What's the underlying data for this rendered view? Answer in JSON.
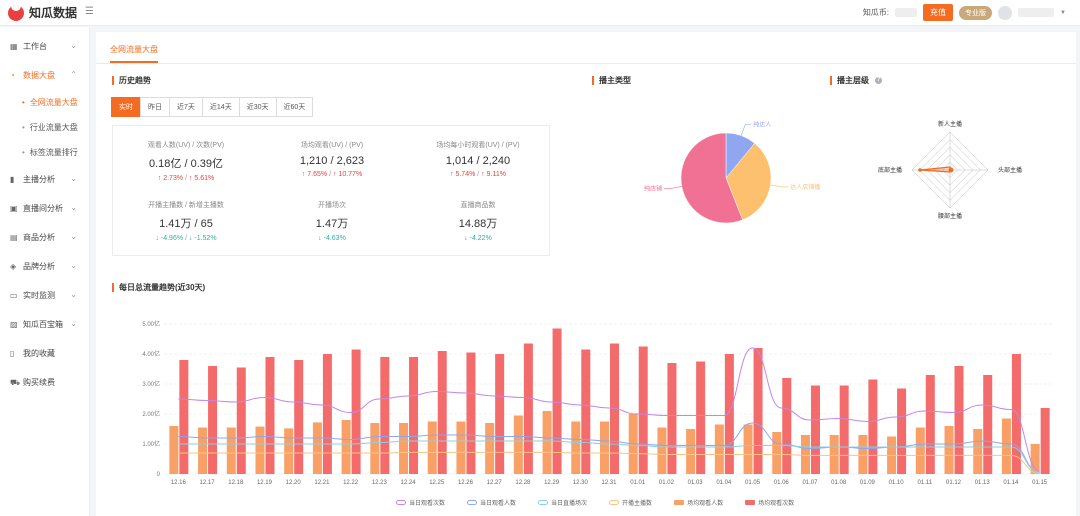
{
  "app": {
    "name": "知瓜数据"
  },
  "topbar": {
    "coin_label": "知瓜币:",
    "recharge": "充值",
    "pro_badge": "专业版"
  },
  "sidebar": {
    "items": [
      {
        "label": "工作台",
        "icon": "grid-icon",
        "has_chevron": true
      },
      {
        "label": "数据大盘",
        "icon": "pie-icon",
        "has_chevron": true,
        "active": true
      },
      {
        "label": "主播分析",
        "icon": "bar-icon",
        "has_chevron": true
      },
      {
        "label": "直播间分析",
        "icon": "tv-icon",
        "has_chevron": true
      },
      {
        "label": "商品分析",
        "icon": "box-icon",
        "has_chevron": true
      },
      {
        "label": "品牌分析",
        "icon": "brand-icon",
        "has_chevron": true
      },
      {
        "label": "实时监测",
        "icon": "monitor-icon",
        "has_chevron": true
      },
      {
        "label": "知瓜百宝箱",
        "icon": "toolbox-icon",
        "has_chevron": true
      },
      {
        "label": "我的收藏",
        "icon": "bookmark-icon",
        "has_chevron": false
      },
      {
        "label": "购买续费",
        "icon": "cart-icon",
        "has_chevron": false
      }
    ],
    "sub_items": [
      {
        "label": "全网流量大盘",
        "active": true
      },
      {
        "label": "行业流量大盘",
        "active": false
      },
      {
        "label": "标签流量排行",
        "active": false
      }
    ]
  },
  "main": {
    "tab": "全网流量大盘",
    "history_title": "历史趋势",
    "anchor_type_title": "播主类型",
    "anchor_level_title": "播主层级",
    "periods": [
      "实时",
      "昨日",
      "近7天",
      "近14天",
      "近30天",
      "近60天"
    ],
    "stats": [
      {
        "label": "观看人数(UV) / 次数(PV)",
        "value": "0.18亿 / 0.39亿",
        "changes": [
          {
            "dir": "up",
            "text": "2.73%"
          },
          {
            "dir": "up",
            "text": "5.61%"
          }
        ]
      },
      {
        "label": "场均观看(UV) / (PV)",
        "value": "1,210 / 2,623",
        "changes": [
          {
            "dir": "up",
            "text": "7.65%"
          },
          {
            "dir": "up",
            "text": "10.77%"
          }
        ]
      },
      {
        "label": "场均每小时观看(UV) / (PV)",
        "value": "1,014 / 2,240",
        "changes": [
          {
            "dir": "up",
            "text": "5.74%"
          },
          {
            "dir": "up",
            "text": "9.11%"
          }
        ]
      },
      {
        "label": "开播主播数 / 新增主播数",
        "value": "1.41万 / 65",
        "changes": [
          {
            "dir": "down",
            "text": "-4.96%"
          },
          {
            "dir": "down",
            "text": "-1.52%"
          }
        ]
      },
      {
        "label": "开播场次",
        "value": "1.47万",
        "changes": [
          {
            "dir": "down",
            "text": "-4.63%"
          }
        ]
      },
      {
        "label": "直播商品数",
        "value": "14.88万",
        "changes": [
          {
            "dir": "down",
            "text": "-4.22%"
          }
        ]
      }
    ],
    "daily_title": "每日总流量趋势(近30天)"
  },
  "pie_chart": {
    "type": "pie",
    "slices": [
      {
        "label": "纯达人",
        "value": 11,
        "color": "#8fa6f0"
      },
      {
        "label": "达人店铺播",
        "value": 33,
        "color": "#fdc06e"
      },
      {
        "label": "纯店铺",
        "value": 56,
        "color": "#f17195"
      }
    ]
  },
  "radar_chart": {
    "axes": [
      "新人主播",
      "头部主播",
      "腰部主播",
      "底部主播"
    ],
    "color": "#f36c21"
  },
  "chart_data": {
    "type": "bar",
    "categories": [
      "12.16",
      "12.17",
      "12.18",
      "12.19",
      "12.20",
      "12.21",
      "12.22",
      "12.23",
      "12.24",
      "12.25",
      "12.26",
      "12.27",
      "12.28",
      "12.29",
      "12.30",
      "12.31",
      "01.01",
      "01.02",
      "01.03",
      "01.04",
      "01.05",
      "01.06",
      "01.07",
      "01.08",
      "01.09",
      "01.10",
      "01.11",
      "01.12",
      "01.13",
      "01.14",
      "01.15"
    ],
    "ylim": [
      0,
      5
    ],
    "y_ticks": [
      "0",
      "1.00亿",
      "2.00亿",
      "3.00亿",
      "4.00亿",
      "5.00亿"
    ],
    "series": [
      {
        "name": "场均观看人数",
        "kind": "bar",
        "color": "#f9a066",
        "values": [
          1.6,
          1.55,
          1.55,
          1.58,
          1.52,
          1.72,
          1.8,
          1.7,
          1.7,
          1.75,
          1.75,
          1.7,
          1.95,
          2.1,
          1.75,
          1.75,
          2.0,
          1.55,
          1.5,
          1.65,
          1.65,
          1.4,
          1.3,
          1.3,
          1.3,
          1.25,
          1.55,
          1.6,
          1.5,
          1.85,
          1.0
        ]
      },
      {
        "name": "场均观看次数",
        "kind": "bar",
        "color": "#f36b6b",
        "values": [
          3.8,
          3.6,
          3.55,
          3.9,
          3.8,
          4.0,
          4.15,
          3.9,
          3.9,
          4.1,
          4.05,
          4.0,
          4.35,
          4.85,
          4.15,
          4.35,
          4.25,
          3.7,
          3.75,
          4.0,
          4.2,
          3.2,
          2.95,
          2.95,
          3.15,
          2.85,
          3.3,
          3.6,
          3.3,
          4.0,
          2.2
        ]
      },
      {
        "name": "当日观看次数",
        "kind": "line",
        "color": "#c387e6",
        "values": [
          2.5,
          2.45,
          2.4,
          2.55,
          2.4,
          2.3,
          2.05,
          2.5,
          2.6,
          2.75,
          2.7,
          2.6,
          2.55,
          2.4,
          2.3,
          2.2,
          2.0,
          1.95,
          1.95,
          1.95,
          4.2,
          2.2,
          1.8,
          1.85,
          1.75,
          1.9,
          2.1,
          2.05,
          2.3,
          2.15,
          0.1
        ]
      },
      {
        "name": "当日观看人数",
        "kind": "line",
        "color": "#8fa6f0",
        "values": [
          1.25,
          1.2,
          1.2,
          1.25,
          1.2,
          1.2,
          1.15,
          1.25,
          1.25,
          1.3,
          1.3,
          1.25,
          1.25,
          1.2,
          1.15,
          1.1,
          1.0,
          0.95,
          0.95,
          0.95,
          1.7,
          1.0,
          0.85,
          0.9,
          0.85,
          0.9,
          1.0,
          1.0,
          1.1,
          1.0,
          0.05
        ]
      },
      {
        "name": "当日直播场次",
        "kind": "line",
        "color": "#8ad0e6",
        "values": [
          1.0,
          1.0,
          1.0,
          1.0,
          1.0,
          1.0,
          1.0,
          1.05,
          1.1,
          1.1,
          1.1,
          1.1,
          1.1,
          1.1,
          1.05,
          1.0,
          0.95,
          0.9,
          0.9,
          0.9,
          0.95,
          0.95,
          0.9,
          0.9,
          0.9,
          0.9,
          0.9,
          0.9,
          0.9,
          0.9,
          0.05
        ]
      },
      {
        "name": "开播主播数",
        "kind": "line",
        "color": "#f9c38a",
        "values": [
          0.7,
          0.7,
          0.7,
          0.7,
          0.7,
          0.7,
          0.7,
          0.7,
          0.72,
          0.72,
          0.72,
          0.72,
          0.72,
          0.72,
          0.7,
          0.7,
          0.68,
          0.65,
          0.65,
          0.65,
          0.65,
          0.65,
          0.62,
          0.62,
          0.62,
          0.62,
          0.62,
          0.62,
          0.62,
          0.62,
          0.02
        ]
      }
    ],
    "legend_order": [
      "当日观看次数",
      "当日观看人数",
      "当日直播场次",
      "开播主播数",
      "场均观看人数",
      "场均观看次数"
    ]
  }
}
